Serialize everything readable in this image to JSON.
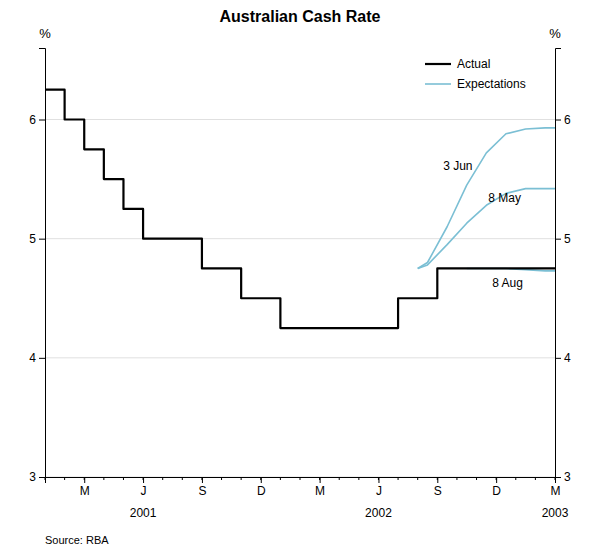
{
  "chart_data": {
    "type": "line",
    "title": "Australian Cash Rate",
    "source": "Source: RBA",
    "ylabel": "%",
    "y2label": "%",
    "xlim": [
      0,
      26
    ],
    "xticks": [
      {
        "value": 2,
        "label": "M"
      },
      {
        "value": 5,
        "label": "J"
      },
      {
        "value": 8,
        "label": "S"
      },
      {
        "value": 11,
        "label": "D"
      },
      {
        "value": 14,
        "label": "M"
      },
      {
        "value": 17,
        "label": "J"
      },
      {
        "value": 20,
        "label": "S"
      },
      {
        "value": 23,
        "label": "D"
      },
      {
        "value": 26,
        "label": "M"
      }
    ],
    "minor_xticks": [
      0,
      1,
      2,
      3,
      4,
      5,
      6,
      7,
      8,
      9,
      10,
      11,
      12,
      13,
      14,
      15,
      16,
      17,
      18,
      19,
      20,
      21,
      22,
      23,
      24,
      25,
      26
    ],
    "year_labels": [
      {
        "value": 5,
        "label": "2001"
      },
      {
        "value": 17,
        "label": "2002"
      },
      {
        "value": 26,
        "label": "2003"
      }
    ],
    "ylim": [
      3.0,
      6.6
    ],
    "yticks": [
      3,
      4,
      5,
      6
    ],
    "y2lim": [
      3.0,
      6.6
    ],
    "y2ticks": [
      3,
      4,
      5,
      6
    ],
    "grid": true,
    "legend": "upper right",
    "series": [
      {
        "name": "Actual",
        "color": "#000000",
        "x": [
          0,
          1,
          1,
          2,
          2,
          3,
          3,
          4,
          4,
          5,
          5,
          6,
          6,
          7,
          7,
          8,
          8,
          9,
          9,
          10,
          10,
          11,
          11,
          12,
          12,
          13,
          13,
          14,
          14,
          15,
          15,
          16,
          16,
          17,
          17,
          18,
          18,
          19,
          19,
          20,
          20,
          21,
          21,
          22,
          22,
          23,
          23,
          24,
          24,
          25,
          25,
          26
        ],
        "values": [
          6.25,
          6.25,
          6.0,
          6.0,
          5.75,
          5.75,
          5.5,
          5.5,
          5.25,
          5.25,
          5.0,
          5.0,
          5.0,
          5.0,
          5.0,
          5.0,
          4.75,
          4.75,
          4.75,
          4.75,
          4.5,
          4.5,
          4.5,
          4.5,
          4.25,
          4.25,
          4.25,
          4.25,
          4.25,
          4.25,
          4.25,
          4.25,
          4.25,
          4.25,
          4.25,
          4.25,
          4.5,
          4.5,
          4.5,
          4.5,
          4.75,
          4.75,
          4.75,
          4.75,
          4.75,
          4.75,
          4.75,
          4.75,
          4.75,
          4.75,
          4.75,
          4.75
        ]
      },
      {
        "name": "Expectations",
        "color": "#7bbfd4",
        "x": [
          19.0,
          19.5,
          20.5,
          21.5,
          22.5,
          23.5,
          24.5,
          25.5,
          26.0
        ],
        "values": [
          4.75,
          4.8,
          5.1,
          5.45,
          5.72,
          5.88,
          5.92,
          5.93,
          5.93
        ]
      },
      {
        "name": "Expectations",
        "color": "#7bbfd4",
        "x": [
          19.0,
          19.5,
          20.5,
          21.5,
          22.5,
          23.5,
          24.5,
          25.5,
          26.0
        ],
        "values": [
          4.75,
          4.78,
          4.95,
          5.13,
          5.28,
          5.38,
          5.42,
          5.42,
          5.42
        ]
      },
      {
        "name": "Expectations",
        "color": "#7bbfd4",
        "x": [
          21.5,
          22.0,
          22.5,
          23.5,
          24.5,
          25.5,
          26.0
        ],
        "values": [
          4.75,
          4.75,
          4.75,
          4.75,
          4.74,
          4.73,
          4.73
        ]
      }
    ],
    "annotations": [
      {
        "text": "3 Jun",
        "x": 20.3,
        "y": 5.55
      },
      {
        "text": "8 May",
        "x": 22.6,
        "y": 5.28
      },
      {
        "text": "8 Aug",
        "x": 22.8,
        "y": 4.57
      }
    ]
  }
}
